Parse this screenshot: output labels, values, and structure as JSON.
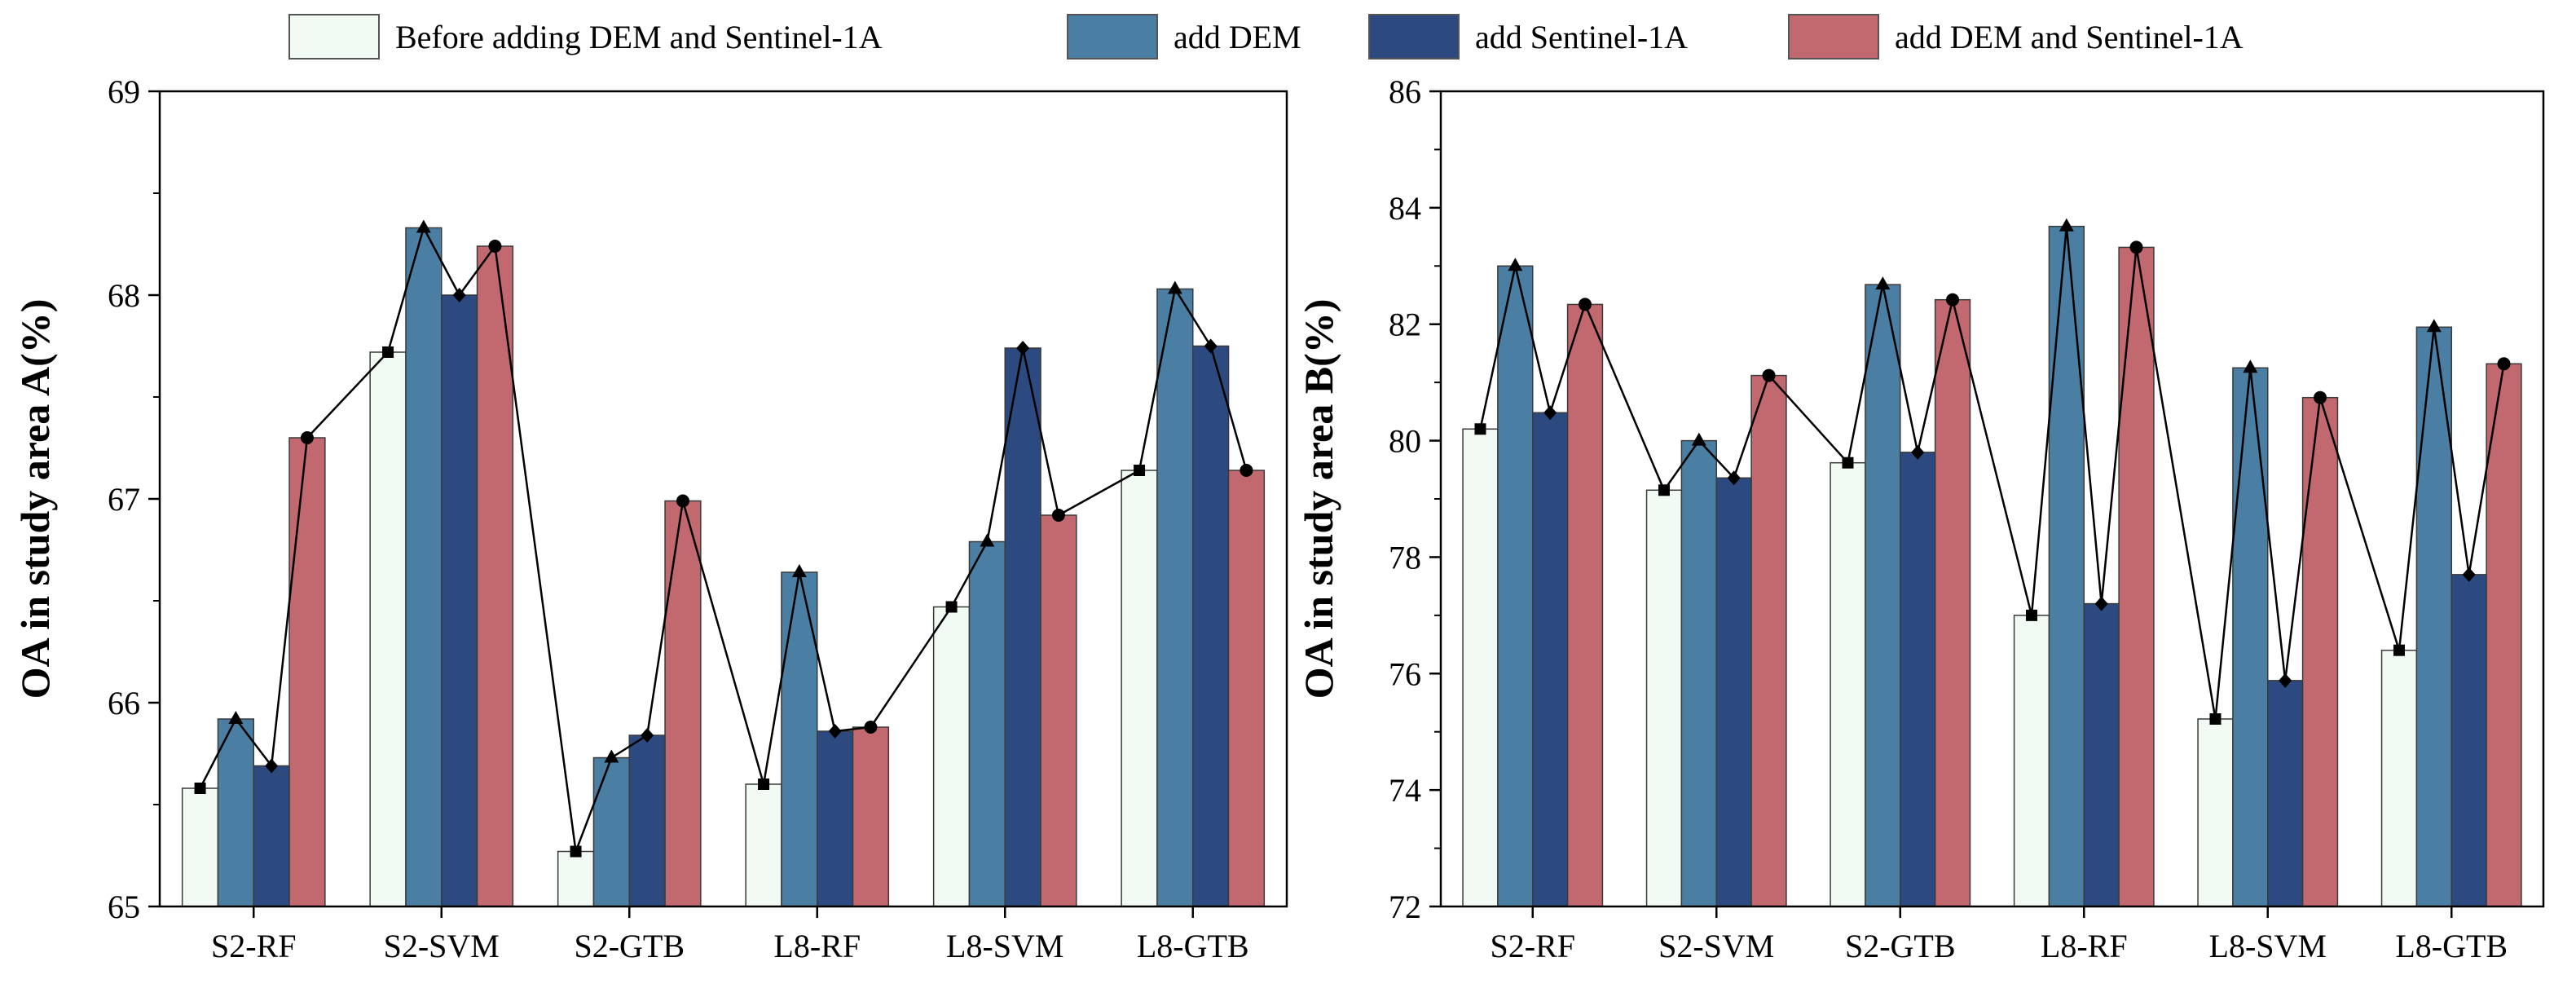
{
  "legend": [
    {
      "name": "Before adding DEM and Sentinel-1A",
      "color": "#f2fbf3"
    },
    {
      "name": "add DEM",
      "color": "#4a7fa3"
    },
    {
      "name": "add Sentinel-1A",
      "color": "#2c4a7f"
    },
    {
      "name": "add DEM and Sentinel-1A",
      "color": "#c2696f"
    }
  ],
  "chart_data": [
    {
      "type": "bar",
      "title": "",
      "xlabel": "",
      "ylabel": "OA in study area A(%)",
      "ylim": [
        65,
        69
      ],
      "yticks": [
        65,
        66,
        67,
        68,
        69
      ],
      "categories": [
        "S2-RF",
        "S2-SVM",
        "S2-GTB",
        "L8-RF",
        "L8-SVM",
        "L8-GTB"
      ],
      "series": [
        {
          "name": "Before adding DEM and Sentinel-1A",
          "color": "#f2fbf3",
          "marker": "square",
          "values": [
            65.58,
            67.72,
            65.27,
            65.6,
            66.47,
            67.14
          ]
        },
        {
          "name": "add DEM",
          "color": "#4a7fa3",
          "marker": "triangle",
          "values": [
            65.92,
            68.33,
            65.73,
            66.64,
            66.79,
            68.03
          ]
        },
        {
          "name": "add Sentinel-1A",
          "color": "#2c4a7f",
          "marker": "diamond",
          "values": [
            65.69,
            68.0,
            65.84,
            65.86,
            67.74,
            67.75
          ]
        },
        {
          "name": "add DEM and Sentinel-1A",
          "color": "#c2696f",
          "marker": "circle",
          "values": [
            67.3,
            68.24,
            66.99,
            65.88,
            66.92,
            67.14
          ]
        }
      ]
    },
    {
      "type": "bar",
      "title": "",
      "xlabel": "",
      "ylabel": "OA in study area B(%)",
      "ylim": [
        72,
        86
      ],
      "yticks": [
        72,
        74,
        76,
        78,
        80,
        82,
        84,
        86
      ],
      "categories": [
        "S2-RF",
        "S2-SVM",
        "S2-GTB",
        "L8-RF",
        "L8-SVM",
        "L8-GTB"
      ],
      "series": [
        {
          "name": "Before adding DEM and Sentinel-1A",
          "color": "#f2fbf3",
          "marker": "square",
          "values": [
            80.2,
            79.15,
            79.62,
            77.0,
            75.22,
            76.4
          ]
        },
        {
          "name": "add DEM",
          "color": "#4a7fa3",
          "marker": "triangle",
          "values": [
            83.0,
            80.0,
            82.68,
            83.68,
            81.25,
            81.95
          ]
        },
        {
          "name": "add Sentinel-1A",
          "color": "#2c4a7f",
          "marker": "diamond",
          "values": [
            80.48,
            79.36,
            79.8,
            77.2,
            75.88,
            77.7
          ]
        },
        {
          "name": "add DEM and Sentinel-1A",
          "color": "#c2696f",
          "marker": "circle",
          "values": [
            82.34,
            81.12,
            82.42,
            83.32,
            80.74,
            81.32
          ]
        }
      ]
    }
  ]
}
